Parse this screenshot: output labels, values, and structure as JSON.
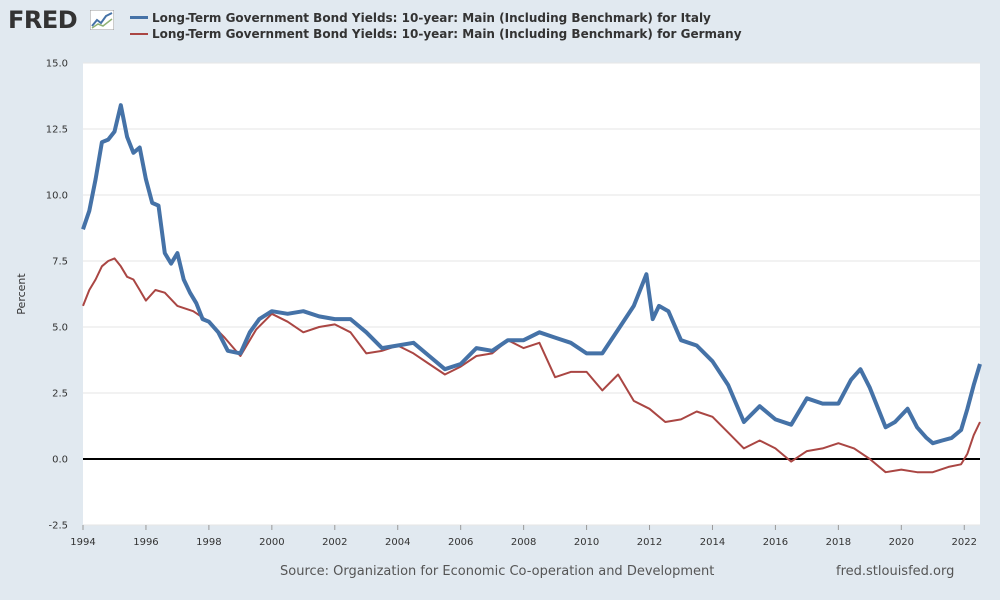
{
  "logo": {
    "text": "FRED",
    "icon": "chart-line-icon"
  },
  "legend": {
    "italy": "Long-Term Government Bond Yields: 10-year: Main (Including Benchmark) for Italy",
    "germany": "Long-Term Government Bond Yields: 10-year: Main (Including Benchmark) for Germany"
  },
  "footer": {
    "source": "Source: Organization for Economic Co-operation and Development",
    "url": "fred.stlouisfed.org"
  },
  "colors": {
    "italy": "#4572a7",
    "germany": "#aa4643",
    "zero_line": "#000000",
    "grid": "#e6e6e6",
    "plot_bg": "#ffffff"
  },
  "chart_data": {
    "type": "line",
    "title": "",
    "xlabel": "",
    "ylabel": "Percent",
    "xlim": [
      1994.0,
      2022.5
    ],
    "ylim": [
      -2.5,
      15.0
    ],
    "y_ticks": [
      -2.5,
      0.0,
      2.5,
      5.0,
      7.5,
      10.0,
      12.5,
      15.0
    ],
    "y_tick_labels": [
      "-2.5",
      "0.0",
      "2.5",
      "5.0",
      "7.5",
      "10.0",
      "12.5",
      "15.0"
    ],
    "x_ticks": [
      1994,
      1996,
      1998,
      2000,
      2002,
      2004,
      2006,
      2008,
      2010,
      2012,
      2014,
      2016,
      2018,
      2020,
      2022
    ],
    "x_tick_labels": [
      "1994",
      "1996",
      "1998",
      "2000",
      "2002",
      "2004",
      "2006",
      "2008",
      "2010",
      "2012",
      "2014",
      "2016",
      "2018",
      "2020",
      "2022"
    ],
    "zero_line": 0.0,
    "series": [
      {
        "name": "Long-Term Government Bond Yields: 10-year: Main (Including Benchmark) for Italy",
        "color": "#4572a7",
        "x": [
          1994.0,
          1994.2,
          1994.4,
          1994.6,
          1994.8,
          1995.0,
          1995.2,
          1995.4,
          1995.6,
          1995.8,
          1996.0,
          1996.2,
          1996.4,
          1996.6,
          1996.8,
          1997.0,
          1997.2,
          1997.4,
          1997.6,
          1997.8,
          1998.0,
          1998.3,
          1998.6,
          1999.0,
          1999.3,
          1999.6,
          2000.0,
          2000.5,
          2001.0,
          2001.5,
          2002.0,
          2002.5,
          2003.0,
          2003.5,
          2004.0,
          2004.5,
          2005.0,
          2005.5,
          2006.0,
          2006.5,
          2007.0,
          2007.5,
          2008.0,
          2008.5,
          2009.0,
          2009.5,
          2010.0,
          2010.5,
          2011.0,
          2011.5,
          2011.9,
          2012.1,
          2012.3,
          2012.6,
          2013.0,
          2013.5,
          2014.0,
          2014.5,
          2015.0,
          2015.5,
          2016.0,
          2016.5,
          2017.0,
          2017.5,
          2018.0,
          2018.4,
          2018.7,
          2019.0,
          2019.5,
          2019.8,
          2020.2,
          2020.5,
          2020.8,
          2021.0,
          2021.3,
          2021.6,
          2021.9,
          2022.1,
          2022.3,
          2022.5
        ],
        "values": [
          8.7,
          9.4,
          10.6,
          12.0,
          12.1,
          12.4,
          13.4,
          12.2,
          11.6,
          11.8,
          10.6,
          9.7,
          9.6,
          7.8,
          7.4,
          7.8,
          6.8,
          6.3,
          5.9,
          5.3,
          5.2,
          4.8,
          4.1,
          4.0,
          4.8,
          5.3,
          5.6,
          5.5,
          5.6,
          5.4,
          5.3,
          5.3,
          4.8,
          4.2,
          4.3,
          4.4,
          3.9,
          3.4,
          3.6,
          4.2,
          4.1,
          4.5,
          4.5,
          4.8,
          4.6,
          4.4,
          4.0,
          4.0,
          4.9,
          5.8,
          7.0,
          5.3,
          5.8,
          5.6,
          4.5,
          4.3,
          3.7,
          2.8,
          1.4,
          2.0,
          1.5,
          1.3,
          2.3,
          2.1,
          2.1,
          3.0,
          3.4,
          2.7,
          1.2,
          1.4,
          1.9,
          1.2,
          0.8,
          0.6,
          0.7,
          0.8,
          1.1,
          1.9,
          2.8,
          3.6
        ]
      },
      {
        "name": "Long-Term Government Bond Yields: 10-year: Main (Including Benchmark) for Germany",
        "color": "#aa4643",
        "x": [
          1994.0,
          1994.2,
          1994.4,
          1994.6,
          1994.8,
          1995.0,
          1995.2,
          1995.4,
          1995.6,
          1995.8,
          1996.0,
          1996.3,
          1996.6,
          1997.0,
          1997.5,
          1998.0,
          1998.5,
          1999.0,
          1999.5,
          2000.0,
          2000.5,
          2001.0,
          2001.5,
          2002.0,
          2002.5,
          2003.0,
          2003.5,
          2004.0,
          2004.5,
          2005.0,
          2005.5,
          2006.0,
          2006.5,
          2007.0,
          2007.5,
          2008.0,
          2008.5,
          2009.0,
          2009.5,
          2010.0,
          2010.5,
          2011.0,
          2011.5,
          2012.0,
          2012.5,
          2013.0,
          2013.5,
          2014.0,
          2014.5,
          2015.0,
          2015.5,
          2016.0,
          2016.5,
          2017.0,
          2017.5,
          2018.0,
          2018.5,
          2019.0,
          2019.5,
          2020.0,
          2020.5,
          2021.0,
          2021.5,
          2021.9,
          2022.1,
          2022.3,
          2022.5
        ],
        "values": [
          5.8,
          6.4,
          6.8,
          7.3,
          7.5,
          7.6,
          7.3,
          6.9,
          6.8,
          6.4,
          6.0,
          6.4,
          6.3,
          5.8,
          5.6,
          5.2,
          4.6,
          3.9,
          4.9,
          5.5,
          5.2,
          4.8,
          5.0,
          5.1,
          4.8,
          4.0,
          4.1,
          4.3,
          4.0,
          3.6,
          3.2,
          3.5,
          3.9,
          4.0,
          4.5,
          4.2,
          4.4,
          3.1,
          3.3,
          3.3,
          2.6,
          3.2,
          2.2,
          1.9,
          1.4,
          1.5,
          1.8,
          1.6,
          1.0,
          0.4,
          0.7,
          0.4,
          -0.1,
          0.3,
          0.4,
          0.6,
          0.4,
          0.0,
          -0.5,
          -0.4,
          -0.5,
          -0.5,
          -0.3,
          -0.2,
          0.2,
          0.9,
          1.4
        ]
      }
    ]
  }
}
